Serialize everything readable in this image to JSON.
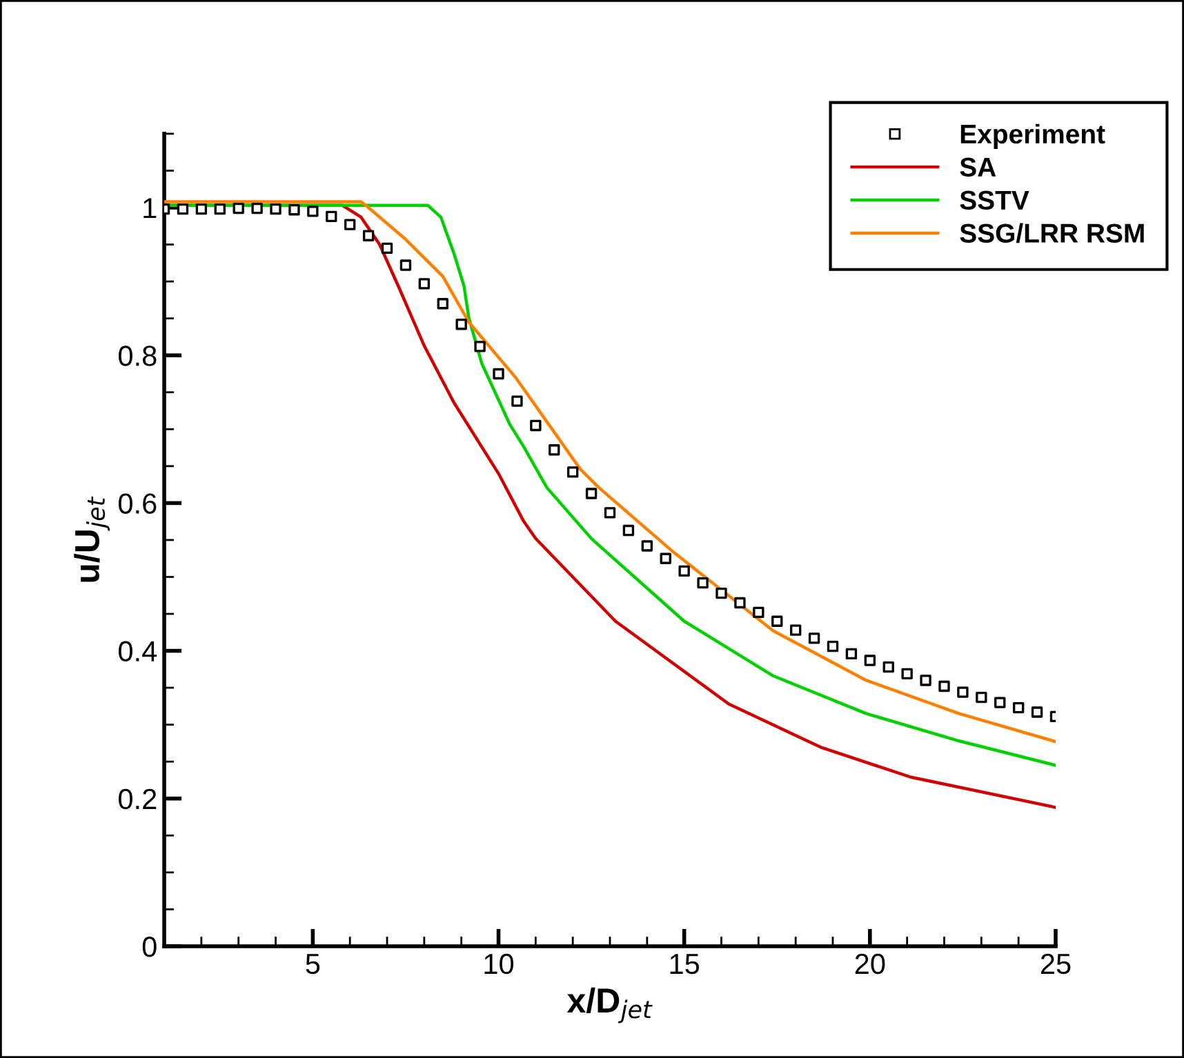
{
  "chart_data": {
    "type": "line",
    "xlabel": "x/D$_{jet}$",
    "ylabel": "u/U$_{jet}$",
    "xlim": [
      1,
      25
    ],
    "ylim": [
      0,
      1.1
    ],
    "xticks": [
      5,
      10,
      15,
      20,
      25
    ],
    "yticks": [
      0,
      0.2,
      0.4,
      0.6,
      0.8,
      1
    ],
    "grid": false,
    "legend": "top right",
    "series": [
      {
        "name": "Experiment",
        "type": "scatter",
        "marker": "square",
        "color": "#000000",
        "x": [
          1,
          1.5,
          2,
          2.5,
          3,
          3.5,
          4,
          4.5,
          5,
          5.5,
          6,
          6.5,
          7,
          7.5,
          8,
          8.5,
          9,
          9.5,
          10,
          10.5,
          11,
          11.5,
          12,
          12.5,
          13,
          13.5,
          14,
          14.5,
          15,
          15.5,
          16,
          16.5,
          17,
          17.5,
          18,
          18.5,
          19,
          19.5,
          20,
          20.5,
          21,
          21.5,
          22,
          22.5,
          23,
          23.5,
          24,
          24.5,
          25
        ],
        "values": [
          0.998,
          0.998,
          0.998,
          0.998,
          0.999,
          0.999,
          0.998,
          0.997,
          0.995,
          0.988,
          0.977,
          0.962,
          0.945,
          0.922,
          0.897,
          0.87,
          0.842,
          0.812,
          0.775,
          0.738,
          0.705,
          0.672,
          0.642,
          0.613,
          0.587,
          0.563,
          0.542,
          0.525,
          0.508,
          0.492,
          0.478,
          0.465,
          0.452,
          0.44,
          0.428,
          0.417,
          0.406,
          0.396,
          0.387,
          0.378,
          0.369,
          0.36,
          0.352,
          0.344,
          0.337,
          0.33,
          0.323,
          0.317,
          0.311
        ]
      },
      {
        "name": "SA",
        "color": "#d00000",
        "x": [
          1,
          5.8,
          6.3,
          6.8,
          7.3,
          8,
          8.8,
          10,
          10.67,
          11,
          13.15,
          16.2,
          18.7,
          21.1,
          25
        ],
        "values": [
          1.003,
          1.003,
          0.987,
          0.95,
          0.894,
          0.813,
          0.736,
          0.64,
          0.576,
          0.552,
          0.44,
          0.328,
          0.269,
          0.229,
          0.188
        ]
      },
      {
        "name": "SSTV",
        "color": "#00d000",
        "x": [
          1,
          8.1,
          8.45,
          8.8,
          9.07,
          9.2,
          9.55,
          10.3,
          10.67,
          11.3,
          12.5,
          15,
          17.4,
          19.9,
          22.4,
          25
        ],
        "values": [
          1.003,
          1.003,
          0.987,
          0.938,
          0.894,
          0.851,
          0.789,
          0.707,
          0.677,
          0.621,
          0.552,
          0.44,
          0.366,
          0.315,
          0.278,
          0.245
        ]
      },
      {
        "name": "SSG/LRR RSM",
        "color": "#ff8000",
        "x": [
          1,
          6.3,
          6.5,
          7.5,
          8.5,
          9.2,
          10.46,
          12.2,
          12.7,
          14.7,
          17.4,
          19.9,
          22.4,
          25
        ],
        "values": [
          1.008,
          1.008,
          1,
          0.957,
          0.907,
          0.845,
          0.77,
          0.646,
          0.621,
          0.534,
          0.427,
          0.36,
          0.315,
          0.277
        ]
      }
    ]
  }
}
